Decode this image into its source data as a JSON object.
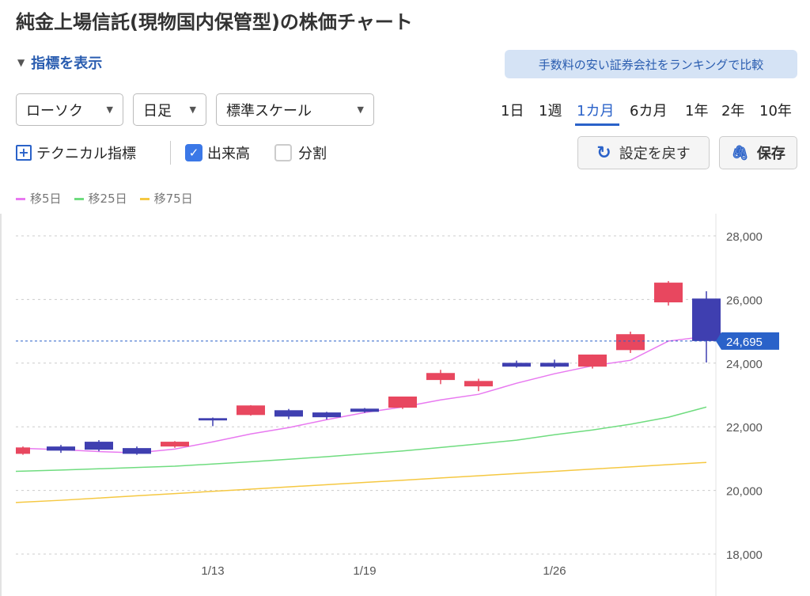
{
  "title": "純金上場信託(現物国内保管型)の株価チャート",
  "indicator_toggle": "指標を表示",
  "rank_button": "手数料の安い証券会社をランキングで比較",
  "selects": {
    "chart_type": "ローソク",
    "interval": "日足",
    "scale": "標準スケール"
  },
  "periods": [
    "1日",
    "1週",
    "1カ月",
    "6カ月",
    "1年",
    "2年",
    "10年"
  ],
  "active_period": "1カ月",
  "tech_label": "テクニカル指標",
  "volume_label": "出来高",
  "volume_checked": true,
  "split_label": "分割",
  "split_checked": false,
  "reset_button": "設定を戻す",
  "save_button": "保存",
  "colors": {
    "up": "#e8475f",
    "down": "#3f3fb0",
    "ma5": "#e879f0",
    "ma25": "#6fdc7f",
    "ma75": "#f5c842",
    "accent": "#2a62c9"
  },
  "chart_data": {
    "type": "candlestick",
    "legend": [
      "移5日",
      "移25日",
      "移75日"
    ],
    "ylim": [
      18000,
      28000
    ],
    "yticks": [
      "28,000",
      "26,000",
      "24,000",
      "22,000",
      "20,000",
      "18,000"
    ],
    "ytick_values": [
      28000,
      26000,
      24000,
      22000,
      20000,
      18000
    ],
    "xticks": [
      {
        "label": "1/13",
        "index": 5
      },
      {
        "label": "1/19",
        "index": 9
      },
      {
        "label": "1/26",
        "index": 14
      }
    ],
    "current_price": 24695,
    "current_label": "24,695",
    "candles": [
      {
        "o": 21150,
        "h": 21380,
        "l": 21120,
        "c": 21350
      },
      {
        "o": 21380,
        "h": 21430,
        "l": 21180,
        "c": 21250
      },
      {
        "o": 21530,
        "h": 21580,
        "l": 21230,
        "c": 21280
      },
      {
        "o": 21330,
        "h": 21380,
        "l": 21120,
        "c": 21150
      },
      {
        "o": 21380,
        "h": 21550,
        "l": 21340,
        "c": 21530
      },
      {
        "o": 22270,
        "h": 22290,
        "l": 22020,
        "c": 22200
      },
      {
        "o": 22370,
        "h": 22680,
        "l": 22350,
        "c": 22670
      },
      {
        "o": 22520,
        "h": 22560,
        "l": 22240,
        "c": 22320
      },
      {
        "o": 22450,
        "h": 22470,
        "l": 22230,
        "c": 22300
      },
      {
        "o": 22570,
        "h": 22590,
        "l": 22440,
        "c": 22470
      },
      {
        "o": 22600,
        "h": 22950,
        "l": 22560,
        "c": 22950
      },
      {
        "o": 23470,
        "h": 23790,
        "l": 23340,
        "c": 23690
      },
      {
        "o": 23270,
        "h": 23510,
        "l": 23120,
        "c": 23440
      },
      {
        "o": 24010,
        "h": 24080,
        "l": 23860,
        "c": 23890
      },
      {
        "o": 24010,
        "h": 24110,
        "l": 23850,
        "c": 23890
      },
      {
        "o": 23890,
        "h": 24270,
        "l": 23830,
        "c": 24270
      },
      {
        "o": 24410,
        "h": 24990,
        "l": 24320,
        "c": 24910
      },
      {
        "o": 25910,
        "h": 26580,
        "l": 25810,
        "c": 26530
      },
      {
        "o": 26030,
        "h": 26260,
        "l": 24020,
        "c": 24695
      }
    ],
    "ma5": [
      21330,
      21280,
      21220,
      21180,
      21300,
      21526,
      21775,
      21974,
      22223,
      22447,
      22621,
      22845,
      23020,
      23368,
      23667,
      23916,
      24090,
      24693,
      24840
    ],
    "ma25": [
      20600,
      20640,
      20680,
      20720,
      20760,
      20830,
      20900,
      20980,
      21060,
      21150,
      21240,
      21350,
      21460,
      21580,
      21750,
      21900,
      22080,
      22300,
      22620
    ],
    "ma75": [
      19620,
      19690,
      19760,
      19830,
      19900,
      19970,
      20040,
      20110,
      20180,
      20250,
      20320,
      20390,
      20460,
      20530,
      20600,
      20670,
      20740,
      20810,
      20880
    ]
  }
}
